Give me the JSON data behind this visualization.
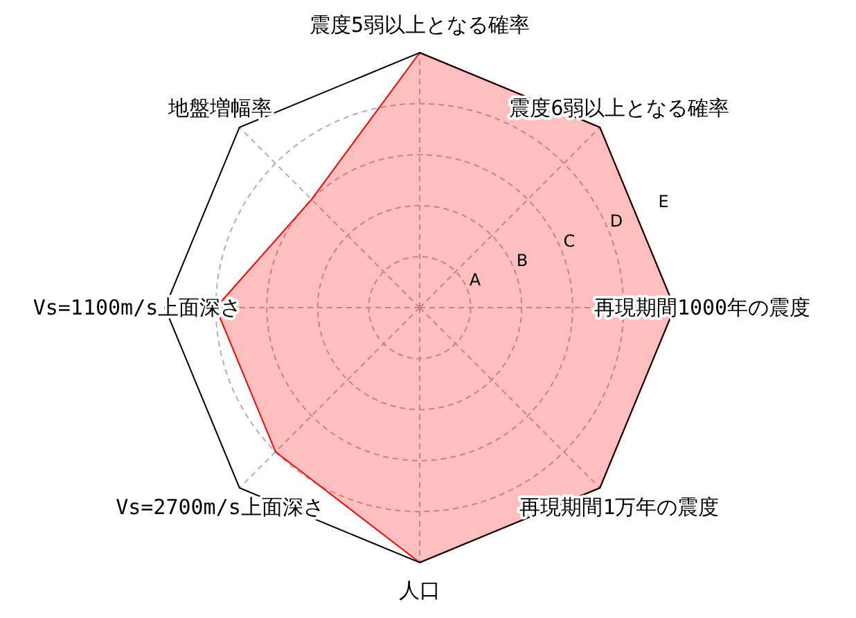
{
  "chart_data": {
    "type": "radar",
    "categories": [
      "震度5弱以上となる確率",
      "震度6弱以上となる確率",
      "再現期間1000年の震度",
      "再現期間1万年の震度",
      "人口",
      "Vs=2700m/s上面深さ",
      "Vs=1100m/s上面深さ",
      "地盤増幅率"
    ],
    "series": [
      {
        "color": "#ff0000",
        "values": [
          5,
          5,
          5,
          5,
          5,
          4,
          4,
          3
        ]
      }
    ],
    "ylim": [
      0,
      5
    ],
    "yticks": [
      {
        "value": 1,
        "label": "A"
      },
      {
        "value": 2,
        "label": "B"
      },
      {
        "value": 3,
        "label": "C"
      },
      {
        "value": 4,
        "label": "D"
      },
      {
        "value": 5,
        "label": "E"
      }
    ],
    "grid": true
  }
}
